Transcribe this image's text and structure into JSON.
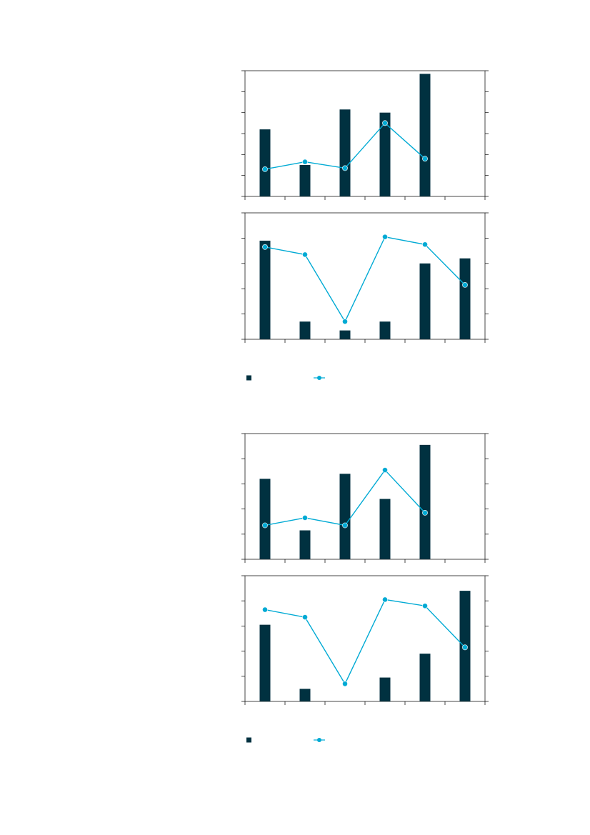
{
  "colors": {
    "bar": "#003140",
    "line": "#00aad4"
  },
  "legend_placement": "bottom-left",
  "chart_data": [
    {
      "type": "bar+line",
      "title": "",
      "categories": 6,
      "y_ticks_left": 6,
      "y_ticks_right": 6,
      "panels": [
        {
          "ylim": [
            0,
            6
          ],
          "bars": [
            3.2,
            1.5,
            4.15,
            4.0,
            5.85,
            null
          ],
          "line": [
            1.3,
            1.65,
            1.35,
            3.5,
            1.8,
            null
          ]
        },
        {
          "ylim": [
            0,
            5
          ],
          "bars": [
            3.9,
            0.7,
            0.35,
            0.7,
            3.0,
            3.2
          ],
          "line": [
            3.65,
            3.35,
            0.7,
            4.05,
            3.75,
            2.15
          ]
        }
      ],
      "legend": [
        {
          "kind": "bar",
          "label": ""
        },
        {
          "kind": "line",
          "label": ""
        }
      ]
    },
    {
      "type": "bar+line",
      "title": "",
      "categories": 6,
      "panels": [
        {
          "ylim": [
            0,
            5
          ],
          "bars": [
            3.2,
            1.15,
            3.4,
            2.4,
            4.55,
            null
          ],
          "line": [
            1.35,
            1.65,
            1.35,
            3.55,
            1.85,
            null
          ]
        },
        {
          "ylim": [
            0,
            5
          ],
          "bars": [
            3.05,
            0.5,
            0.0,
            0.95,
            1.9,
            4.4
          ],
          "line": [
            3.65,
            3.35,
            0.7,
            4.05,
            3.8,
            2.15
          ]
        }
      ],
      "legend": [
        {
          "kind": "bar",
          "label": ""
        },
        {
          "kind": "line",
          "label": ""
        }
      ]
    }
  ]
}
